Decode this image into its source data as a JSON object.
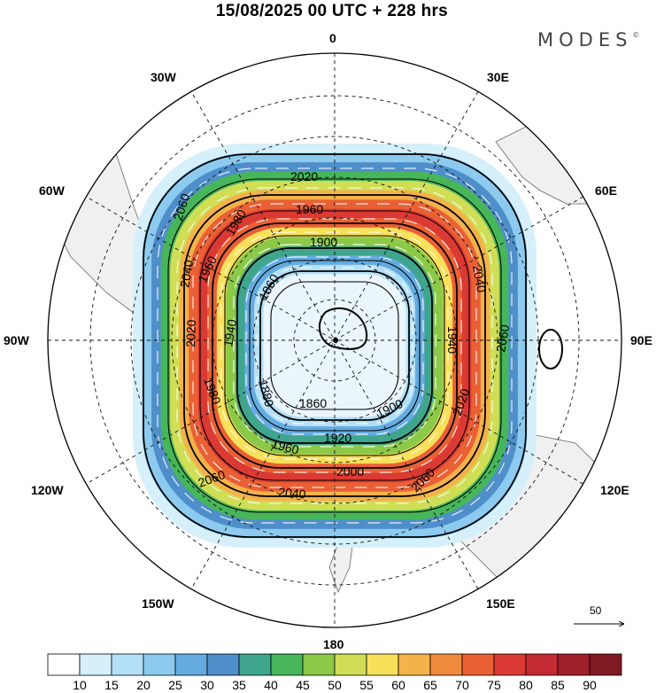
{
  "title": "15/08/2025  00 UTC  + 228 hrs",
  "brand": "MODES",
  "brand_mark": "©",
  "longitude_labels": {
    "lon_0": "0",
    "lon_30e": "30E",
    "lon_60e": "60E",
    "lon_90e": "90E",
    "lon_120e": "120E",
    "lon_150e": "150E",
    "lon_180": "180",
    "lon_150w": "150W",
    "lon_120w": "120W",
    "lon_90w": "90W",
    "lon_60w": "60W",
    "lon_30w": "30W"
  },
  "contours": {
    "c1860": "1860",
    "c1880": "1880",
    "c1900": "1900",
    "c1920": "1920",
    "c1940": "1940",
    "c1960": "1960",
    "c1980": "1980",
    "c2000": "2000",
    "c2020": "2020",
    "c2040": "2040",
    "c2060": "2060"
  },
  "reference_vector": "50",
  "colorbar": {
    "labels": [
      "10",
      "15",
      "20",
      "25",
      "30",
      "35",
      "40",
      "45",
      "50",
      "55",
      "60",
      "65",
      "70",
      "75",
      "80",
      "85",
      "90"
    ],
    "colors": [
      "#ffffff",
      "#d6f0fb",
      "#b3e0f7",
      "#8ccbef",
      "#64abe0",
      "#4f8fc9",
      "#3fa58c",
      "#47b65a",
      "#8cc948",
      "#cfde55",
      "#f8e05a",
      "#f4b24a",
      "#f08a3c",
      "#ea6035",
      "#da3a33",
      "#c32a32",
      "#a11f2b",
      "#801a22"
    ]
  },
  "speed_bands": [
    {
      "speed": 10,
      "color": "#d6f0fb"
    },
    {
      "speed": 20,
      "color": "#8ccbef"
    },
    {
      "speed": 30,
      "color": "#4f8fc9"
    },
    {
      "speed": 40,
      "color": "#47b65a"
    },
    {
      "speed": 50,
      "color": "#cfde55"
    },
    {
      "speed": 60,
      "color": "#f4b24a"
    },
    {
      "speed": 70,
      "color": "#ea6035"
    },
    {
      "speed": 80,
      "color": "#da3a33"
    },
    {
      "speed": 70,
      "color": "#ea6035"
    },
    {
      "speed": 60,
      "color": "#f8e05a"
    },
    {
      "speed": 50,
      "color": "#8cc948"
    },
    {
      "speed": 40,
      "color": "#3fa58c"
    },
    {
      "speed": 30,
      "color": "#64abe0"
    },
    {
      "speed": 20,
      "color": "#b3e0f7"
    },
    {
      "speed": 10,
      "color": "#eaf5fc"
    }
  ]
}
